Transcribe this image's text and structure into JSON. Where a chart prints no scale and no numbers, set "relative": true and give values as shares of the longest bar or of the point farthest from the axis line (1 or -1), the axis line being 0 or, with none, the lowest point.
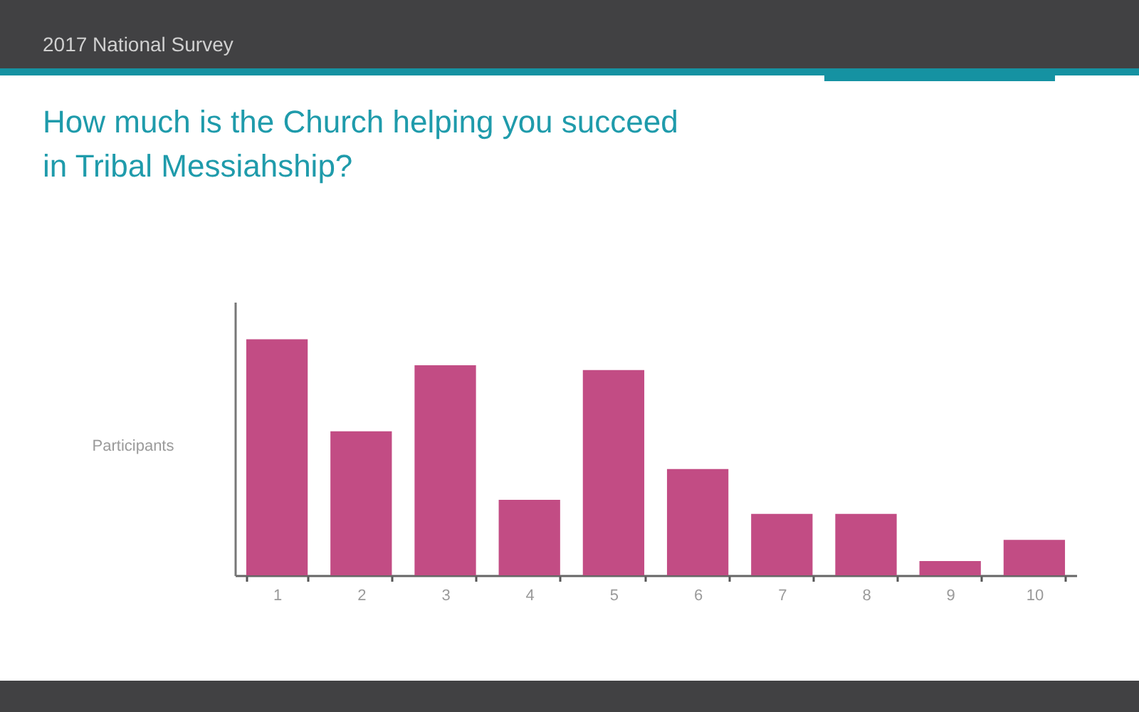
{
  "chart_data": {
    "type": "bar",
    "title": "How much is the Church helping you succeed\nin Tribal Messiahship?",
    "annotations": [
      "2017 National Survey"
    ],
    "ylabel": "Participants",
    "categories": [
      "1",
      "2",
      "3",
      "4",
      "5",
      "6",
      "7",
      "8",
      "9",
      "10"
    ],
    "values": [
      1,
      0.61,
      0.89,
      0.32,
      0.87,
      0.45,
      0.26,
      0.26,
      0.06,
      0.15
    ],
    "color": "#c24c84",
    "relative": true
  }
}
